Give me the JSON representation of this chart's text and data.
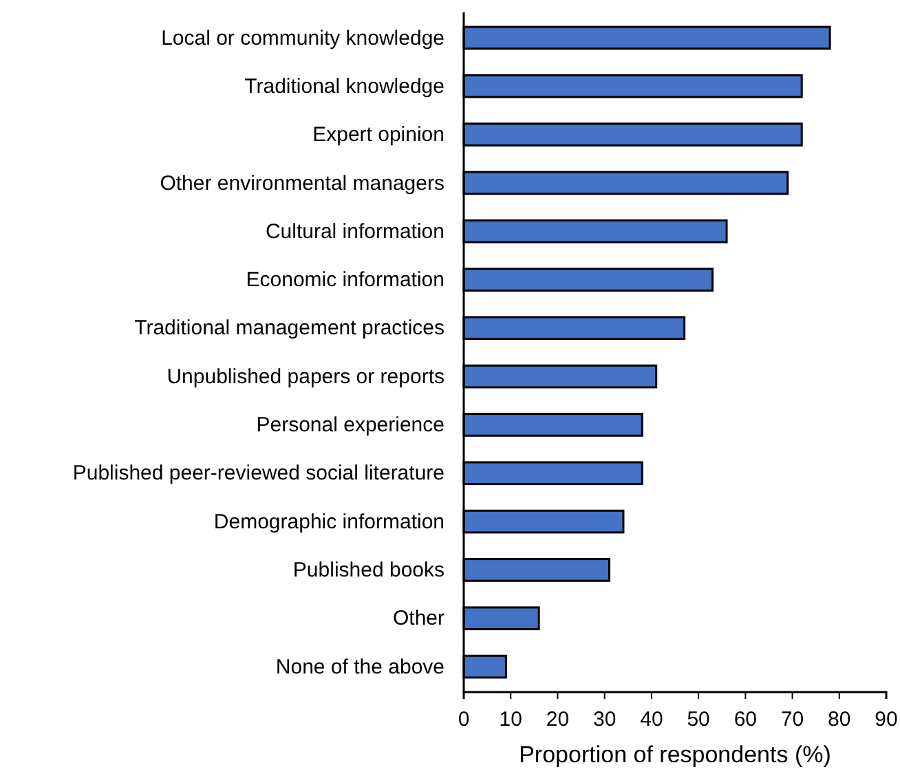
{
  "chart_data": {
    "type": "bar",
    "orientation": "horizontal",
    "xlabel": "Proportion of respondents (%)",
    "categories": [
      "Local or community knowledge",
      "Traditional knowledge",
      "Expert opinion",
      "Other environmental managers ",
      "Cultural information",
      "Economic information ",
      "Traditional management practices",
      "Unpublished papers or reports",
      "Personal experience",
      "Published peer-reviewed social literature",
      "Demographic information",
      "Published books",
      "Other",
      "None of the above"
    ],
    "values": [
      78,
      72,
      72,
      69,
      56,
      53,
      47,
      41,
      38,
      38,
      34,
      31,
      16,
      9
    ],
    "color": "#4472c4",
    "xlim": [
      0,
      90
    ],
    "xticks": [
      0,
      10,
      20,
      30,
      40,
      50,
      60,
      70,
      80,
      90
    ],
    "grid": false
  }
}
